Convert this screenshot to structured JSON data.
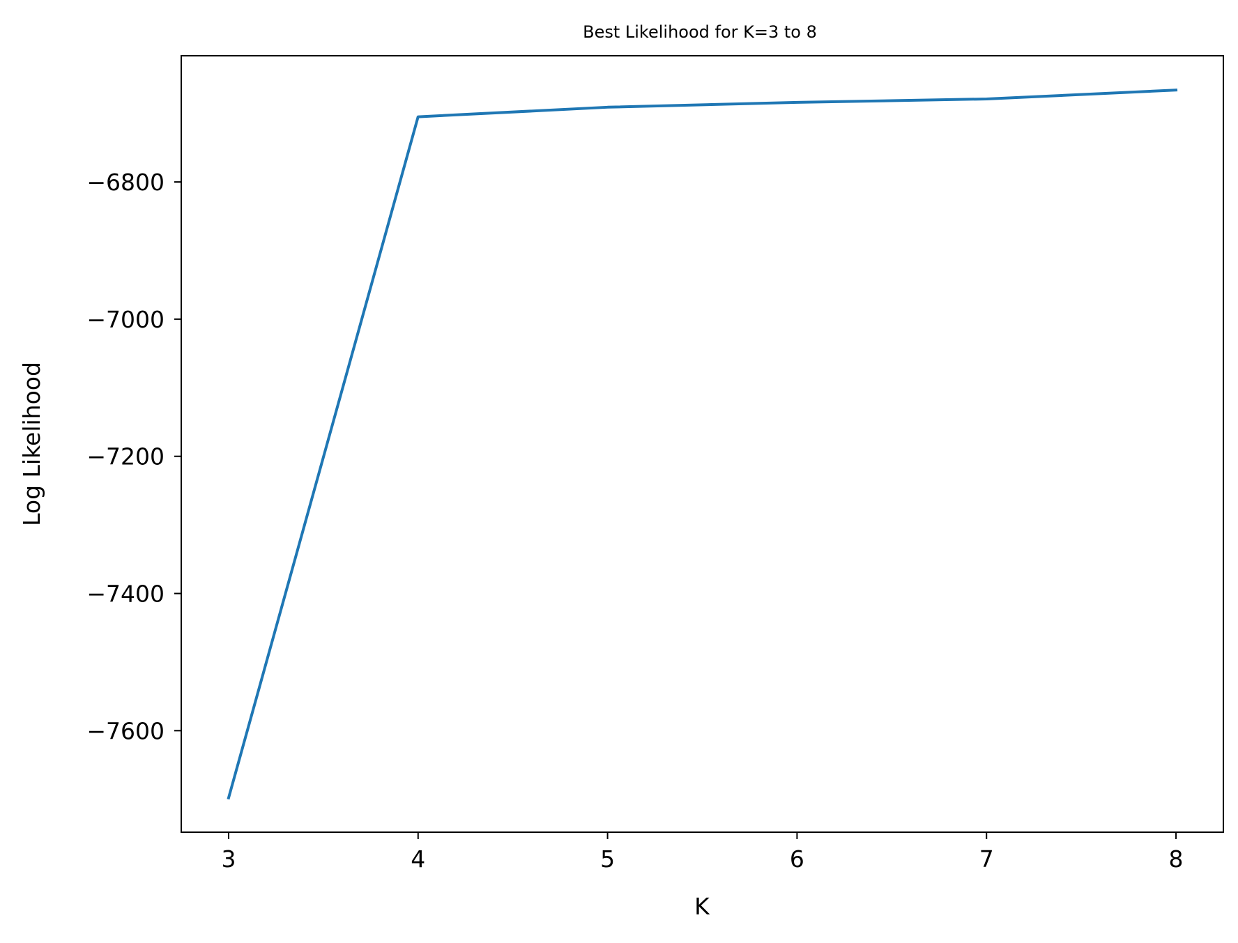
{
  "chart_data": {
    "type": "line",
    "title": "Best Likelihood for K=3 to 8",
    "xlabel": "K",
    "ylabel": "Log Likelihood",
    "x": [
      3,
      4,
      5,
      6,
      7,
      8
    ],
    "series": [
      {
        "values": [
          -7698,
          -6705,
          -6691,
          -6684,
          -6679,
          -6666
        ],
        "color": "#1f77b4"
      }
    ],
    "xticks": [
      3,
      4,
      5,
      6,
      7,
      8
    ],
    "xtick_labels": [
      "3",
      "4",
      "5",
      "6",
      "7",
      "8"
    ],
    "yticks": [
      -7600,
      -7400,
      -7200,
      -7000,
      -6800
    ],
    "ytick_labels": [
      "−7600",
      "−7400",
      "−7200",
      "−7000",
      "−6800"
    ],
    "xlim": [
      2.75,
      8.25
    ],
    "ylim": [
      -7748,
      -6616
    ],
    "grid": false,
    "legend": "none"
  }
}
